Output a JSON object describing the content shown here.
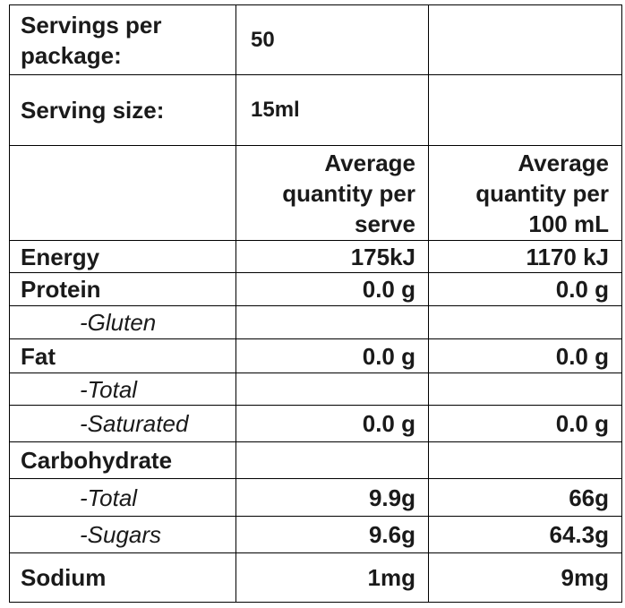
{
  "table": {
    "rows": [
      [
        "Servings per package:",
        "50",
        null
      ],
      [
        "Serving size:",
        "15ml",
        null
      ],
      [
        null,
        "Average quantity per serve",
        "Average quantity per 100 mL"
      ],
      [
        "Energy",
        "175kJ",
        "1170 kJ"
      ],
      [
        "Protein",
        "0.0 g",
        "0.0 g"
      ],
      [
        "-Gluten",
        null,
        null
      ],
      [
        "Fat",
        "0.0 g",
        "0.0 g"
      ],
      [
        "-Total",
        null,
        null
      ],
      [
        "-Saturated",
        "0.0 g",
        "0.0 g"
      ],
      [
        "Carbohydrate",
        null,
        null
      ],
      [
        "-Total",
        "9.9g",
        "66g"
      ],
      [
        "-Sugars",
        "9.6g",
        "64.3g"
      ],
      [
        "Sodium",
        "1mg",
        "9mg"
      ]
    ]
  }
}
